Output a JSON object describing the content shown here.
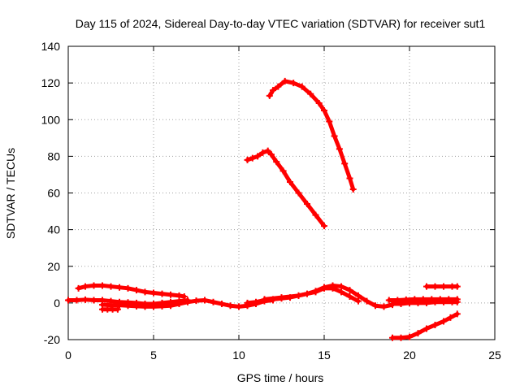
{
  "chart_data": {
    "type": "scatter",
    "title": "Day 115 of 2024, Sidereal Day-to-day VTEC variation (SDTVAR) for receiver sut1",
    "xlabel": "GPS time / hours",
    "ylabel": "SDTVAR / TECUs",
    "xlim": [
      0,
      25
    ],
    "ylim": [
      -20,
      140
    ],
    "xticks": [
      0,
      5,
      10,
      15,
      20,
      25
    ],
    "yticks": [
      -20,
      0,
      20,
      40,
      60,
      80,
      100,
      120,
      140
    ],
    "grid": true,
    "marker_color": "#ff0000",
    "series": [
      {
        "name": "arc-high-1",
        "x": [
          11.8,
          12.0,
          12.3,
          12.7,
          13.2,
          13.7,
          14.2,
          14.7,
          15.0,
          15.3,
          15.6,
          15.9,
          16.2,
          16.5,
          16.7
        ],
        "y": [
          113,
          116,
          118,
          121,
          120,
          118,
          114,
          109,
          105,
          99,
          91,
          84,
          76,
          68,
          62
        ]
      },
      {
        "name": "arc-high-2",
        "x": [
          10.5,
          10.8,
          11.1,
          11.4,
          11.7,
          11.9,
          12.2,
          12.6,
          13.0,
          13.5,
          14.0,
          14.5,
          15.0
        ],
        "y": [
          78,
          79,
          80,
          82,
          83,
          81,
          77,
          72,
          66,
          60,
          54,
          48,
          42
        ]
      },
      {
        "name": "arc-upper-left",
        "x": [
          0.6,
          1.0,
          1.5,
          2.0,
          2.5,
          3.0,
          3.5,
          4.0,
          4.5,
          5.0,
          5.5,
          6.0,
          6.5,
          6.8
        ],
        "y": [
          8,
          9,
          9.5,
          9.5,
          9,
          8.5,
          8,
          7,
          6,
          5.5,
          5,
          4.5,
          4,
          3.5
        ]
      },
      {
        "name": "arc-baseline-left",
        "x": [
          0,
          0.5,
          1.0,
          1.5,
          2.0,
          2.5,
          3.0,
          3.5,
          4.0,
          4.5,
          5.0,
          5.5,
          6.0,
          6.5,
          7.0
        ],
        "y": [
          1.5,
          1.5,
          1.8,
          1.5,
          1.5,
          1,
          0.5,
          0.3,
          0,
          -0.5,
          -0.5,
          0,
          0.5,
          1,
          1.5
        ]
      },
      {
        "name": "arc-short-left",
        "x": [
          2.0,
          2.3,
          2.6,
          2.9
        ],
        "y": [
          -3.5,
          -3.5,
          -3.5,
          -3.5
        ]
      },
      {
        "name": "arc-lower-left",
        "x": [
          2.0,
          2.5,
          3.0,
          3.5,
          4.0,
          4.5,
          5.0,
          5.5,
          6.0,
          6.5,
          7.0,
          7.5,
          8.0,
          8.5,
          9.0,
          9.5,
          10.0,
          10.5,
          11.0,
          11.5,
          12.0
        ],
        "y": [
          -1,
          -1.2,
          -1.2,
          -1.5,
          -1.8,
          -2,
          -2,
          -1.8,
          -1.5,
          -0.5,
          0.5,
          1.2,
          1.5,
          0.5,
          -0.5,
          -1.5,
          -2,
          -1.5,
          -0.5,
          1,
          1.5
        ]
      },
      {
        "name": "arc-middle",
        "x": [
          10.5,
          11.0,
          11.5,
          12.0,
          12.5,
          13.0,
          13.5,
          14.0,
          14.5,
          15.0,
          15.5,
          16.0,
          16.5,
          17.0,
          17.5,
          18.0,
          18.5,
          19.0
        ],
        "y": [
          0,
          0.5,
          1.5,
          2,
          2.5,
          3,
          4,
          5,
          6.5,
          8.5,
          9.5,
          9,
          7,
          4,
          1,
          -1.5,
          -2,
          -1
        ]
      },
      {
        "name": "arc-middle-2",
        "x": [
          11.5,
          12.5,
          13.5,
          14.5,
          15.0,
          15.5,
          16.0,
          16.5,
          17.0
        ],
        "y": [
          2,
          3,
          4,
          6,
          8,
          8,
          6,
          3.5,
          1
        ]
      },
      {
        "name": "arc-right-upper",
        "x": [
          21.0,
          21.5,
          22.0,
          22.5,
          22.8
        ],
        "y": [
          9,
          9,
          9,
          9,
          9
        ]
      },
      {
        "name": "arc-right-band-1",
        "x": [
          18.8,
          19.3,
          19.8,
          20.3,
          20.8,
          21.3,
          21.8,
          22.3,
          22.8
        ],
        "y": [
          1.5,
          1.5,
          1.8,
          2,
          2,
          2,
          2,
          2,
          2
        ]
      },
      {
        "name": "arc-right-band-2",
        "x": [
          19.0,
          19.5,
          20.0,
          20.5,
          21.0,
          21.5,
          22.0,
          22.5,
          22.8
        ],
        "y": [
          -0.5,
          -0.5,
          0,
          0,
          0,
          0.5,
          0.5,
          0.5,
          0.5
        ]
      },
      {
        "name": "arc-right-lower",
        "x": [
          19.0,
          19.5,
          20.0,
          20.5,
          21.0,
          21.5,
          22.0,
          22.4,
          22.8
        ],
        "y": [
          -19,
          -19,
          -18.5,
          -16.5,
          -14,
          -12,
          -10,
          -8,
          -6
        ]
      }
    ]
  }
}
